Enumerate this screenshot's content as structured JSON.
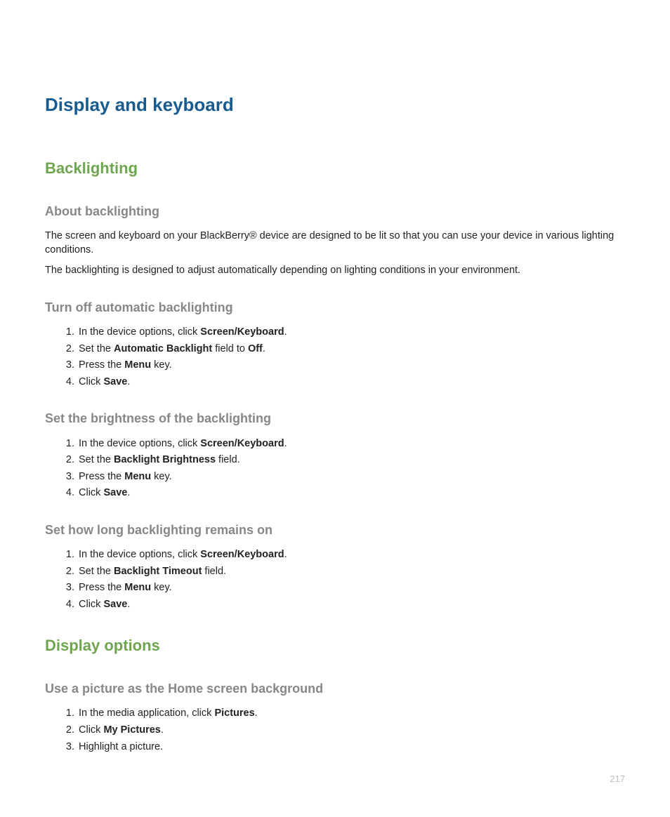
{
  "page": {
    "number": "217",
    "chapter_title": "Display and keyboard"
  },
  "colors": {
    "chapter_title": "#175b8f",
    "section_title": "#6fa54e",
    "subsection_title": "#868786",
    "body_text": "#222222",
    "page_number": "#bdbdbd",
    "background": "#ffffff"
  },
  "typography": {
    "chapter_fontsize_pt": 20,
    "section_fontsize_pt": 17,
    "subsection_fontsize_pt": 14,
    "body_fontsize_pt": 11,
    "font_family": "sans-serif (Myriad/Segoe-like)"
  },
  "sections": {
    "backlighting": {
      "title": "Backlighting",
      "about": {
        "title": "About backlighting",
        "p1": "The screen and keyboard on your BlackBerry® device are designed to be lit so that you can use your device in various lighting conditions.",
        "p2": "The backlighting is designed to adjust automatically depending on lighting conditions in your environment."
      },
      "turn_off_auto": {
        "title": "Turn off automatic backlighting",
        "steps": {
          "s1_pre": "In the device options, click ",
          "s1_bold": "Screen/Keyboard",
          "s1_post": ".",
          "s2_pre": "Set the ",
          "s2_bold1": "Automatic Backlight",
          "s2_mid": " field to ",
          "s2_bold2": "Off",
          "s2_post": ".",
          "s3_pre": "Press the ",
          "s3_bold": "Menu",
          "s3_post": " key.",
          "s4_pre": "Click ",
          "s4_bold": "Save",
          "s4_post": "."
        }
      },
      "set_brightness": {
        "title": "Set the brightness of the backlighting",
        "steps": {
          "s1_pre": "In the device options, click ",
          "s1_bold": "Screen/Keyboard",
          "s1_post": ".",
          "s2_pre": "Set the ",
          "s2_bold": "Backlight Brightness",
          "s2_post": " field.",
          "s3_pre": "Press the ",
          "s3_bold": "Menu",
          "s3_post": " key.",
          "s4_pre": "Click ",
          "s4_bold": "Save",
          "s4_post": "."
        }
      },
      "set_timeout": {
        "title": "Set how long backlighting remains on",
        "steps": {
          "s1_pre": "In the device options, click ",
          "s1_bold": "Screen/Keyboard",
          "s1_post": ".",
          "s2_pre": "Set the ",
          "s2_bold": "Backlight Timeout",
          "s2_post": " field.",
          "s3_pre": "Press the ",
          "s3_bold": "Menu",
          "s3_post": " key.",
          "s4_pre": "Click ",
          "s4_bold": "Save",
          "s4_post": "."
        }
      }
    },
    "display_options": {
      "title": "Display options",
      "use_picture": {
        "title": "Use a picture as the Home screen background",
        "steps": {
          "s1_pre": "In the media application, click ",
          "s1_bold": "Pictures",
          "s1_post": ".",
          "s2_pre": "Click ",
          "s2_bold": "My Pictures",
          "s2_post": ".",
          "s3": "Highlight a picture."
        }
      }
    }
  }
}
